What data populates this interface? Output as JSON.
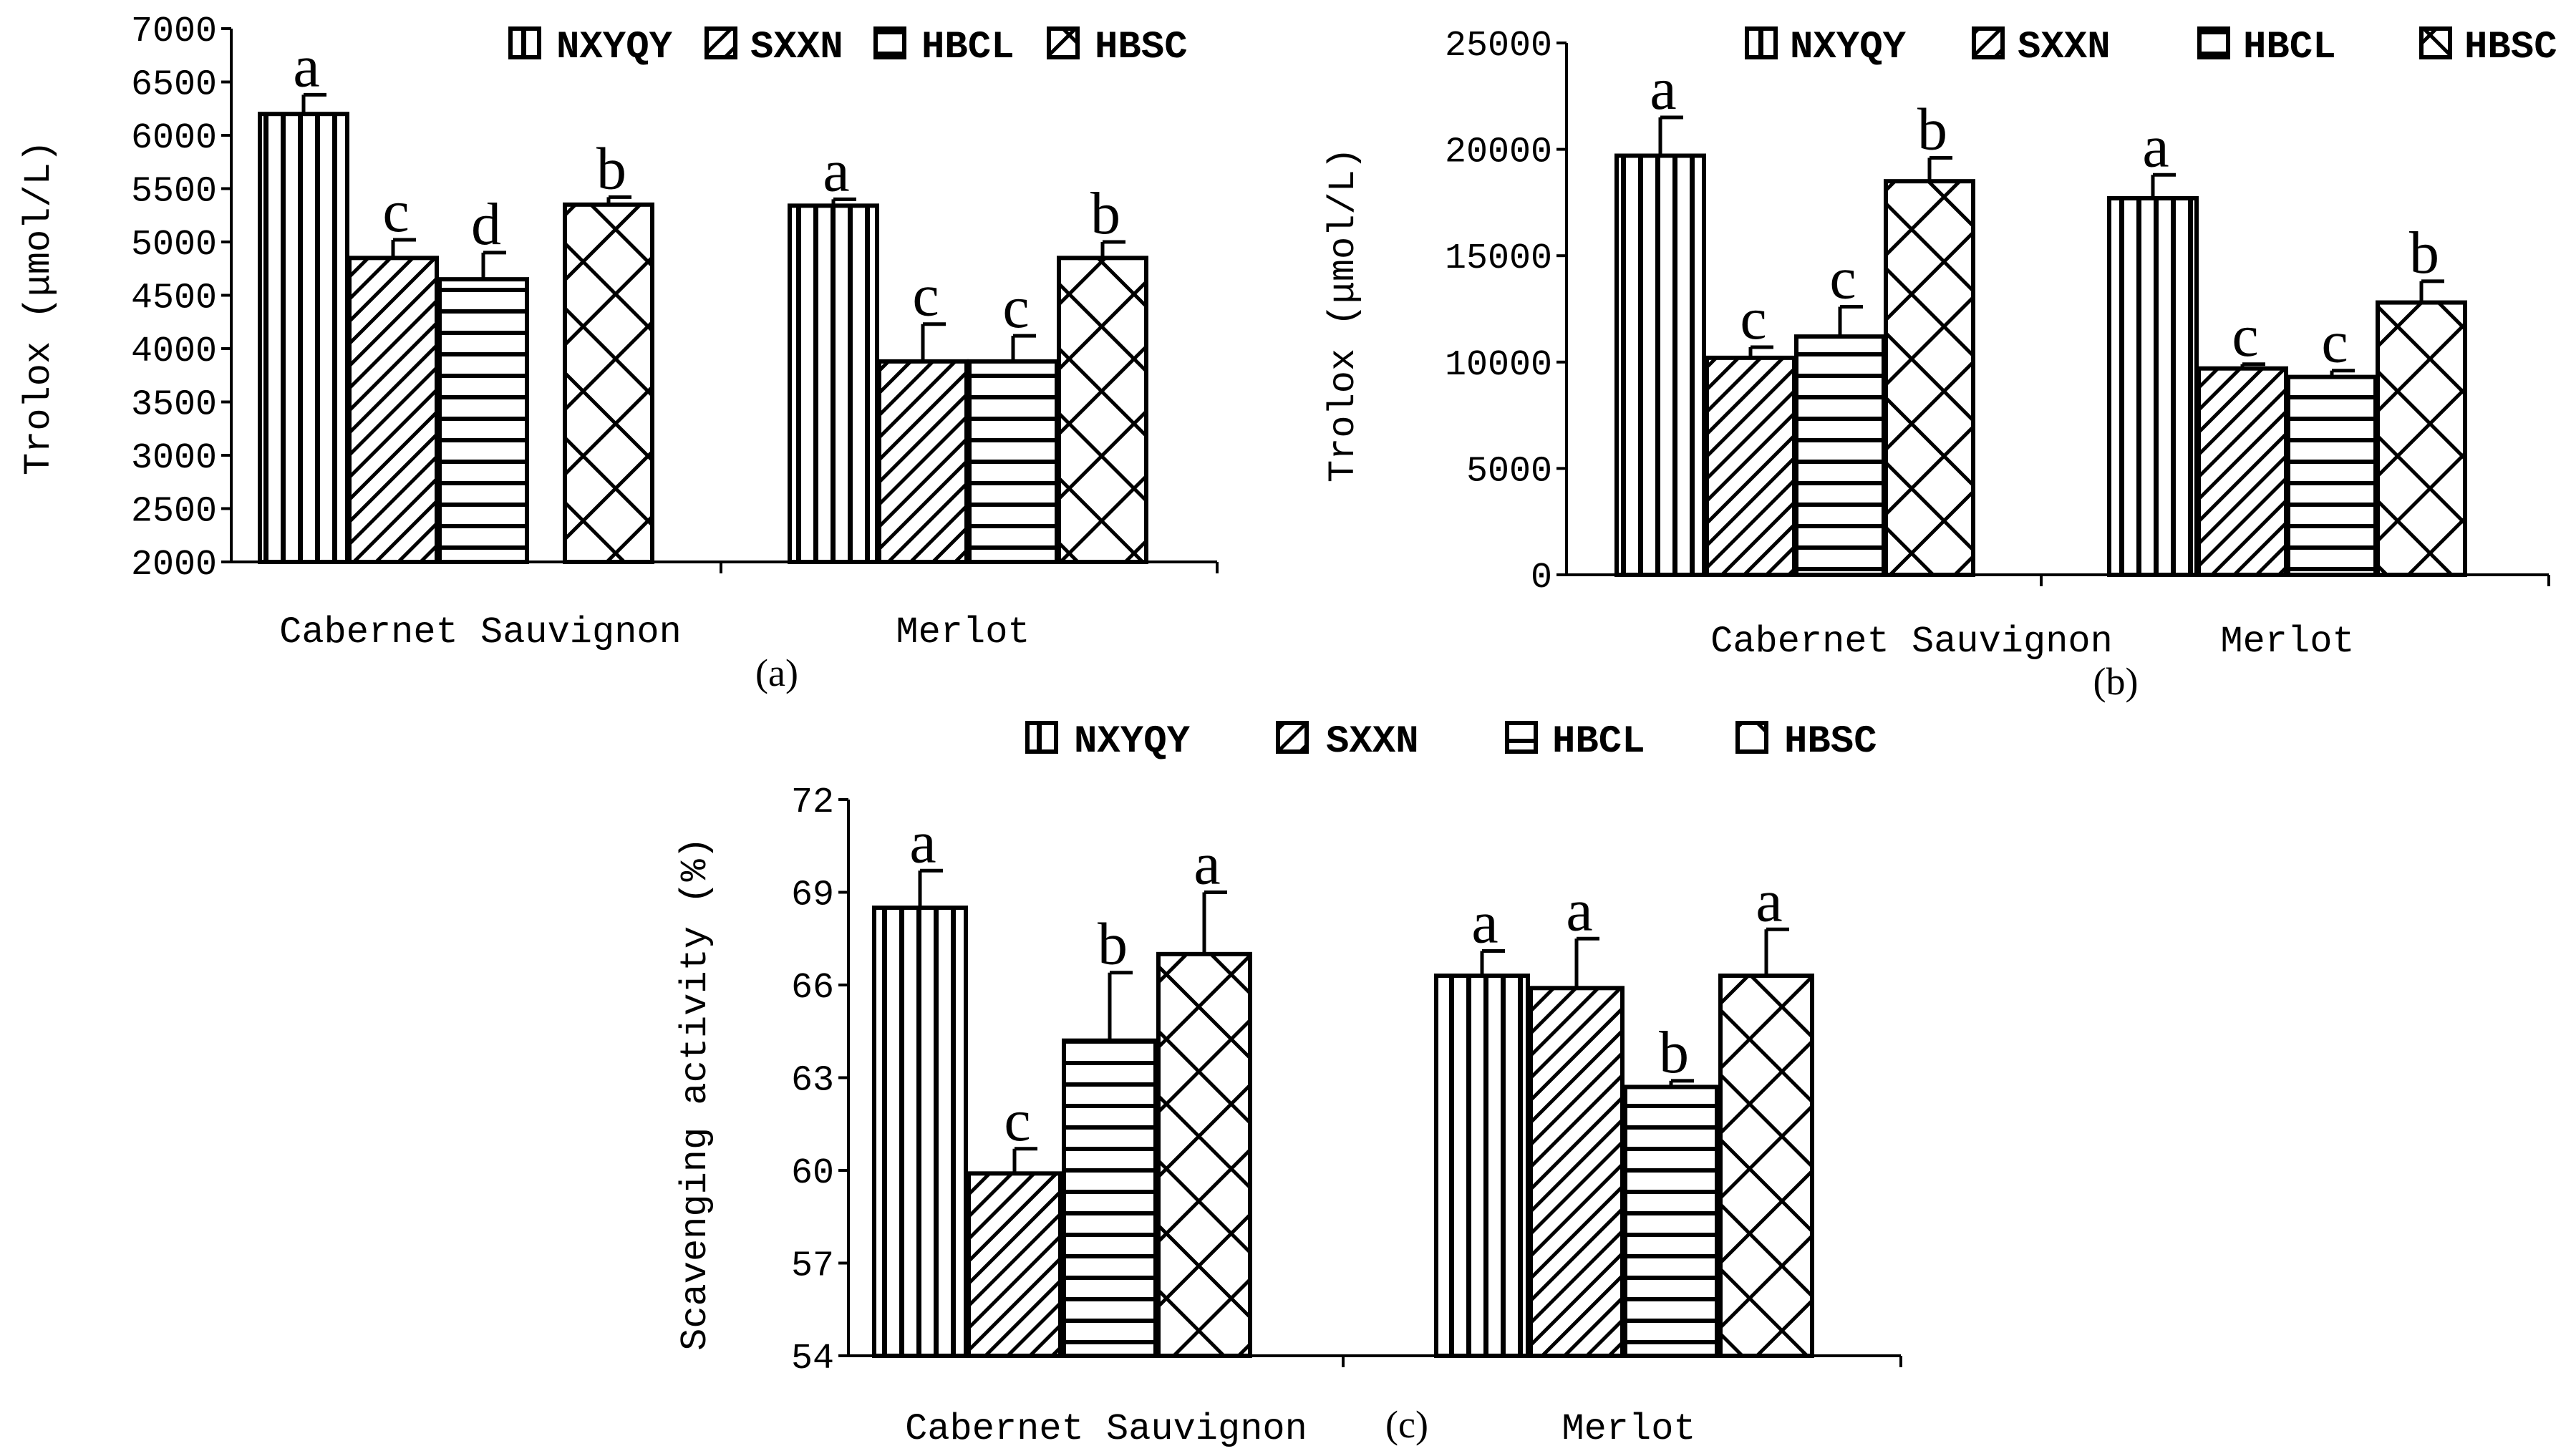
{
  "colors": {
    "ink": "#000000",
    "paper": "#ffffff"
  },
  "chart_data": [
    {
      "type": "bar",
      "panel_label": "(a)",
      "ylabel": "Trolox (μmol/L)",
      "ylim": [
        2000,
        7000
      ],
      "yticks": [
        "2000",
        "2500",
        "3000",
        "3500",
        "4000",
        "4500",
        "5000",
        "5500",
        "6000",
        "6500",
        "7000"
      ],
      "categories": [
        "Cabernet Sauvignon",
        "Merlot"
      ],
      "legend": [
        "NXYQY",
        "SXXN",
        "HBCL",
        "HBSC"
      ],
      "legend_position": "top",
      "series": [
        {
          "name": "NXYQY",
          "pattern": "vertical",
          "values": [
            6200,
            5340
          ],
          "errors": [
            180,
            60
          ],
          "labels": [
            "a",
            "a"
          ]
        },
        {
          "name": "SXXN",
          "pattern": "diagonal",
          "values": [
            4850,
            3880
          ],
          "errors": [
            170,
            350
          ],
          "labels": [
            "c",
            "c"
          ]
        },
        {
          "name": "HBCL",
          "pattern": "horizontal",
          "values": [
            4650,
            3880
          ],
          "errors": [
            250,
            240
          ],
          "labels": [
            "d",
            "c"
          ]
        },
        {
          "name": "HBSC",
          "pattern": "lattice",
          "values": [
            5350,
            4850
          ],
          "errors": [
            70,
            150
          ],
          "labels": [
            "b",
            "b"
          ]
        }
      ]
    },
    {
      "type": "bar",
      "panel_label": "(b)",
      "ylabel": "Trolox (μmol/L)",
      "ylim": [
        0,
        25000
      ],
      "yticks": [
        "0",
        "5000",
        "10000",
        "15000",
        "20000",
        "25000"
      ],
      "categories": [
        "Cabernet Sauvignon",
        "Merlot"
      ],
      "legend": [
        "NXYQY",
        "SXXN",
        "HBCL",
        "HBSC"
      ],
      "legend_position": "top",
      "series": [
        {
          "name": "NXYQY",
          "pattern": "vertical",
          "values": [
            19700,
            17700
          ],
          "errors": [
            1800,
            1100
          ],
          "labels": [
            "a",
            "a"
          ]
        },
        {
          "name": "SXXN",
          "pattern": "diagonal",
          "values": [
            10200,
            9700
          ],
          "errors": [
            500,
            200
          ],
          "labels": [
            "c",
            "c"
          ]
        },
        {
          "name": "HBCL",
          "pattern": "horizontal",
          "values": [
            11200,
            9300
          ],
          "errors": [
            1400,
            300
          ],
          "labels": [
            "c",
            "c"
          ]
        },
        {
          "name": "HBSC",
          "pattern": "lattice",
          "values": [
            18500,
            12800
          ],
          "errors": [
            1100,
            1000
          ],
          "labels": [
            "b",
            "b"
          ]
        }
      ]
    },
    {
      "type": "bar",
      "panel_label": "(c)",
      "ylabel": "Scavenging activity (%)",
      "ylim": [
        54,
        72
      ],
      "yticks": [
        "54",
        "57",
        "60",
        "63",
        "66",
        "69",
        "72"
      ],
      "categories": [
        "Cabernet Sauvignon",
        "Merlot"
      ],
      "legend": [
        "NXYQY",
        "SXXN",
        "HBCL",
        "HBSC"
      ],
      "legend_position": "top",
      "series": [
        {
          "name": "NXYQY",
          "pattern": "vertical",
          "values": [
            68.5,
            66.3
          ],
          "errors": [
            1.2,
            0.8
          ],
          "labels": [
            "a",
            "a"
          ]
        },
        {
          "name": "SXXN",
          "pattern": "diagonal",
          "values": [
            59.9,
            65.9
          ],
          "errors": [
            0.8,
            1.6
          ],
          "labels": [
            "c",
            "a"
          ]
        },
        {
          "name": "HBCL",
          "pattern": "horizontal",
          "values": [
            64.2,
            62.7
          ],
          "errors": [
            2.2,
            0.2
          ],
          "labels": [
            "b",
            "b"
          ]
        },
        {
          "name": "HBSC",
          "pattern": "lattice",
          "values": [
            67.0,
            66.3
          ],
          "errors": [
            2.0,
            1.5
          ],
          "labels": [
            "a",
            "a"
          ]
        }
      ]
    }
  ]
}
